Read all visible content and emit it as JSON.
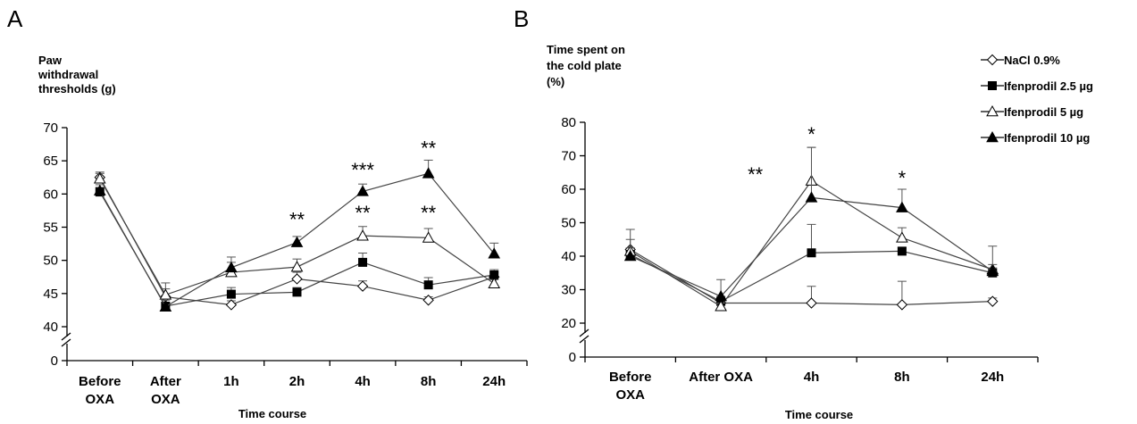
{
  "chart_data": [
    {
      "type": "line",
      "panel": "A",
      "ylabel": [
        "Paw",
        "withdrawal",
        "thresholds (g)"
      ],
      "xlabel": "Time course",
      "categories": [
        [
          "Before",
          "OXA"
        ],
        [
          "After",
          "OXA"
        ],
        [
          "1h"
        ],
        [
          "2h"
        ],
        [
          "4h"
        ],
        [
          "8h"
        ],
        [
          "24h"
        ]
      ],
      "ylim": [
        40,
        70
      ],
      "yticks": [
        40,
        45,
        50,
        55,
        60,
        65,
        70
      ],
      "ybreak_label": "0",
      "series": [
        {
          "name": "NaCl 0.9%",
          "marker": "diamond-open",
          "values": [
            62.5,
            44.5,
            43.3,
            47.2,
            46.1,
            44.0,
            47.5
          ],
          "err": [
            0.8,
            1.2,
            0.6,
            1.0,
            0.8,
            0.5,
            0.7
          ]
        },
        {
          "name": "Ifenprodil 2.5 µg",
          "marker": "square-filled",
          "values": [
            60.3,
            43.1,
            44.9,
            45.2,
            49.7,
            46.3,
            47.8
          ],
          "err": [
            0.7,
            0.9,
            1.0,
            0.7,
            1.4,
            1.1,
            0.8
          ]
        },
        {
          "name": "Ifenprodil 5 µg",
          "marker": "triangle-open",
          "values": [
            62.3,
            44.8,
            48.2,
            49.0,
            53.7,
            53.4,
            46.5
          ],
          "err": [
            0.8,
            1.8,
            1.5,
            1.2,
            1.4,
            1.4,
            0.6
          ]
        },
        {
          "name": "Ifenprodil 10 µg",
          "marker": "triangle-filled",
          "values": [
            60.5,
            43.0,
            48.9,
            52.7,
            60.4,
            63.1,
            51.0
          ],
          "err": [
            0.9,
            1.2,
            1.6,
            0.9,
            1.1,
            2.0,
            1.6
          ]
        }
      ],
      "annotations": [
        {
          "category_index": 3,
          "y": 56.2,
          "text": "**"
        },
        {
          "category_index": 4,
          "y": 63.7,
          "text": "***"
        },
        {
          "category_index": 4,
          "y": 57.2,
          "text": "**"
        },
        {
          "category_index": 5,
          "y": 67.0,
          "text": "**"
        },
        {
          "category_index": 5,
          "y": 57.2,
          "text": "**"
        }
      ]
    },
    {
      "type": "line",
      "panel": "B",
      "ylabel": [
        "Time spent on",
        "the cold plate",
        "(%)"
      ],
      "xlabel": "Time course",
      "categories": [
        [
          "Before",
          "OXA"
        ],
        [
          "After OXA"
        ],
        [
          "4h"
        ],
        [
          "8h"
        ],
        [
          "24h"
        ]
      ],
      "ylim": [
        20,
        80
      ],
      "yticks": [
        20,
        30,
        40,
        50,
        60,
        70,
        80
      ],
      "ybreak_label": "0",
      "series": [
        {
          "name": "NaCl 0.9%",
          "marker": "diamond-open",
          "values": [
            42.0,
            26.0,
            26.0,
            25.5,
            26.5
          ],
          "err": [
            3.0,
            2.0,
            5.0,
            7.0,
            1.0
          ]
        },
        {
          "name": "Ifenprodil 2.5 µg",
          "marker": "square-filled",
          "values": [
            40.5,
            26.5,
            41.0,
            41.5,
            35.0
          ],
          "err": [
            1.0,
            1.0,
            8.5,
            1.0,
            1.5
          ]
        },
        {
          "name": "Ifenprodil 5 µg",
          "marker": "triangle-open",
          "values": [
            41.5,
            25.0,
            62.5,
            45.5,
            36.0
          ],
          "err": [
            1.0,
            1.0,
            10.0,
            3.0,
            1.5
          ]
        },
        {
          "name": "Ifenprodil 10 µg",
          "marker": "triangle-filled",
          "values": [
            40.0,
            28.0,
            57.5,
            54.5,
            35.5
          ],
          "err": [
            8.0,
            5.0,
            15.0,
            5.5,
            7.5
          ]
        }
      ],
      "annotations": [
        {
          "category_index": 2,
          "y": 76.5,
          "text": "*"
        },
        {
          "category_index": 2,
          "y": 64.5,
          "text": "**",
          "offset": "left"
        },
        {
          "category_index": 3,
          "y": 63.5,
          "text": "*"
        }
      ],
      "legend_position": "top-right"
    }
  ],
  "legend": [
    {
      "label": "NaCl 0.9%",
      "marker": "diamond-open"
    },
    {
      "label": "Ifenprodil 2.5 µg",
      "marker": "square-filled"
    },
    {
      "label": "Ifenprodil 5 µg",
      "marker": "triangle-open"
    },
    {
      "label": "Ifenprodil 10 µg",
      "marker": "triangle-filled"
    }
  ]
}
